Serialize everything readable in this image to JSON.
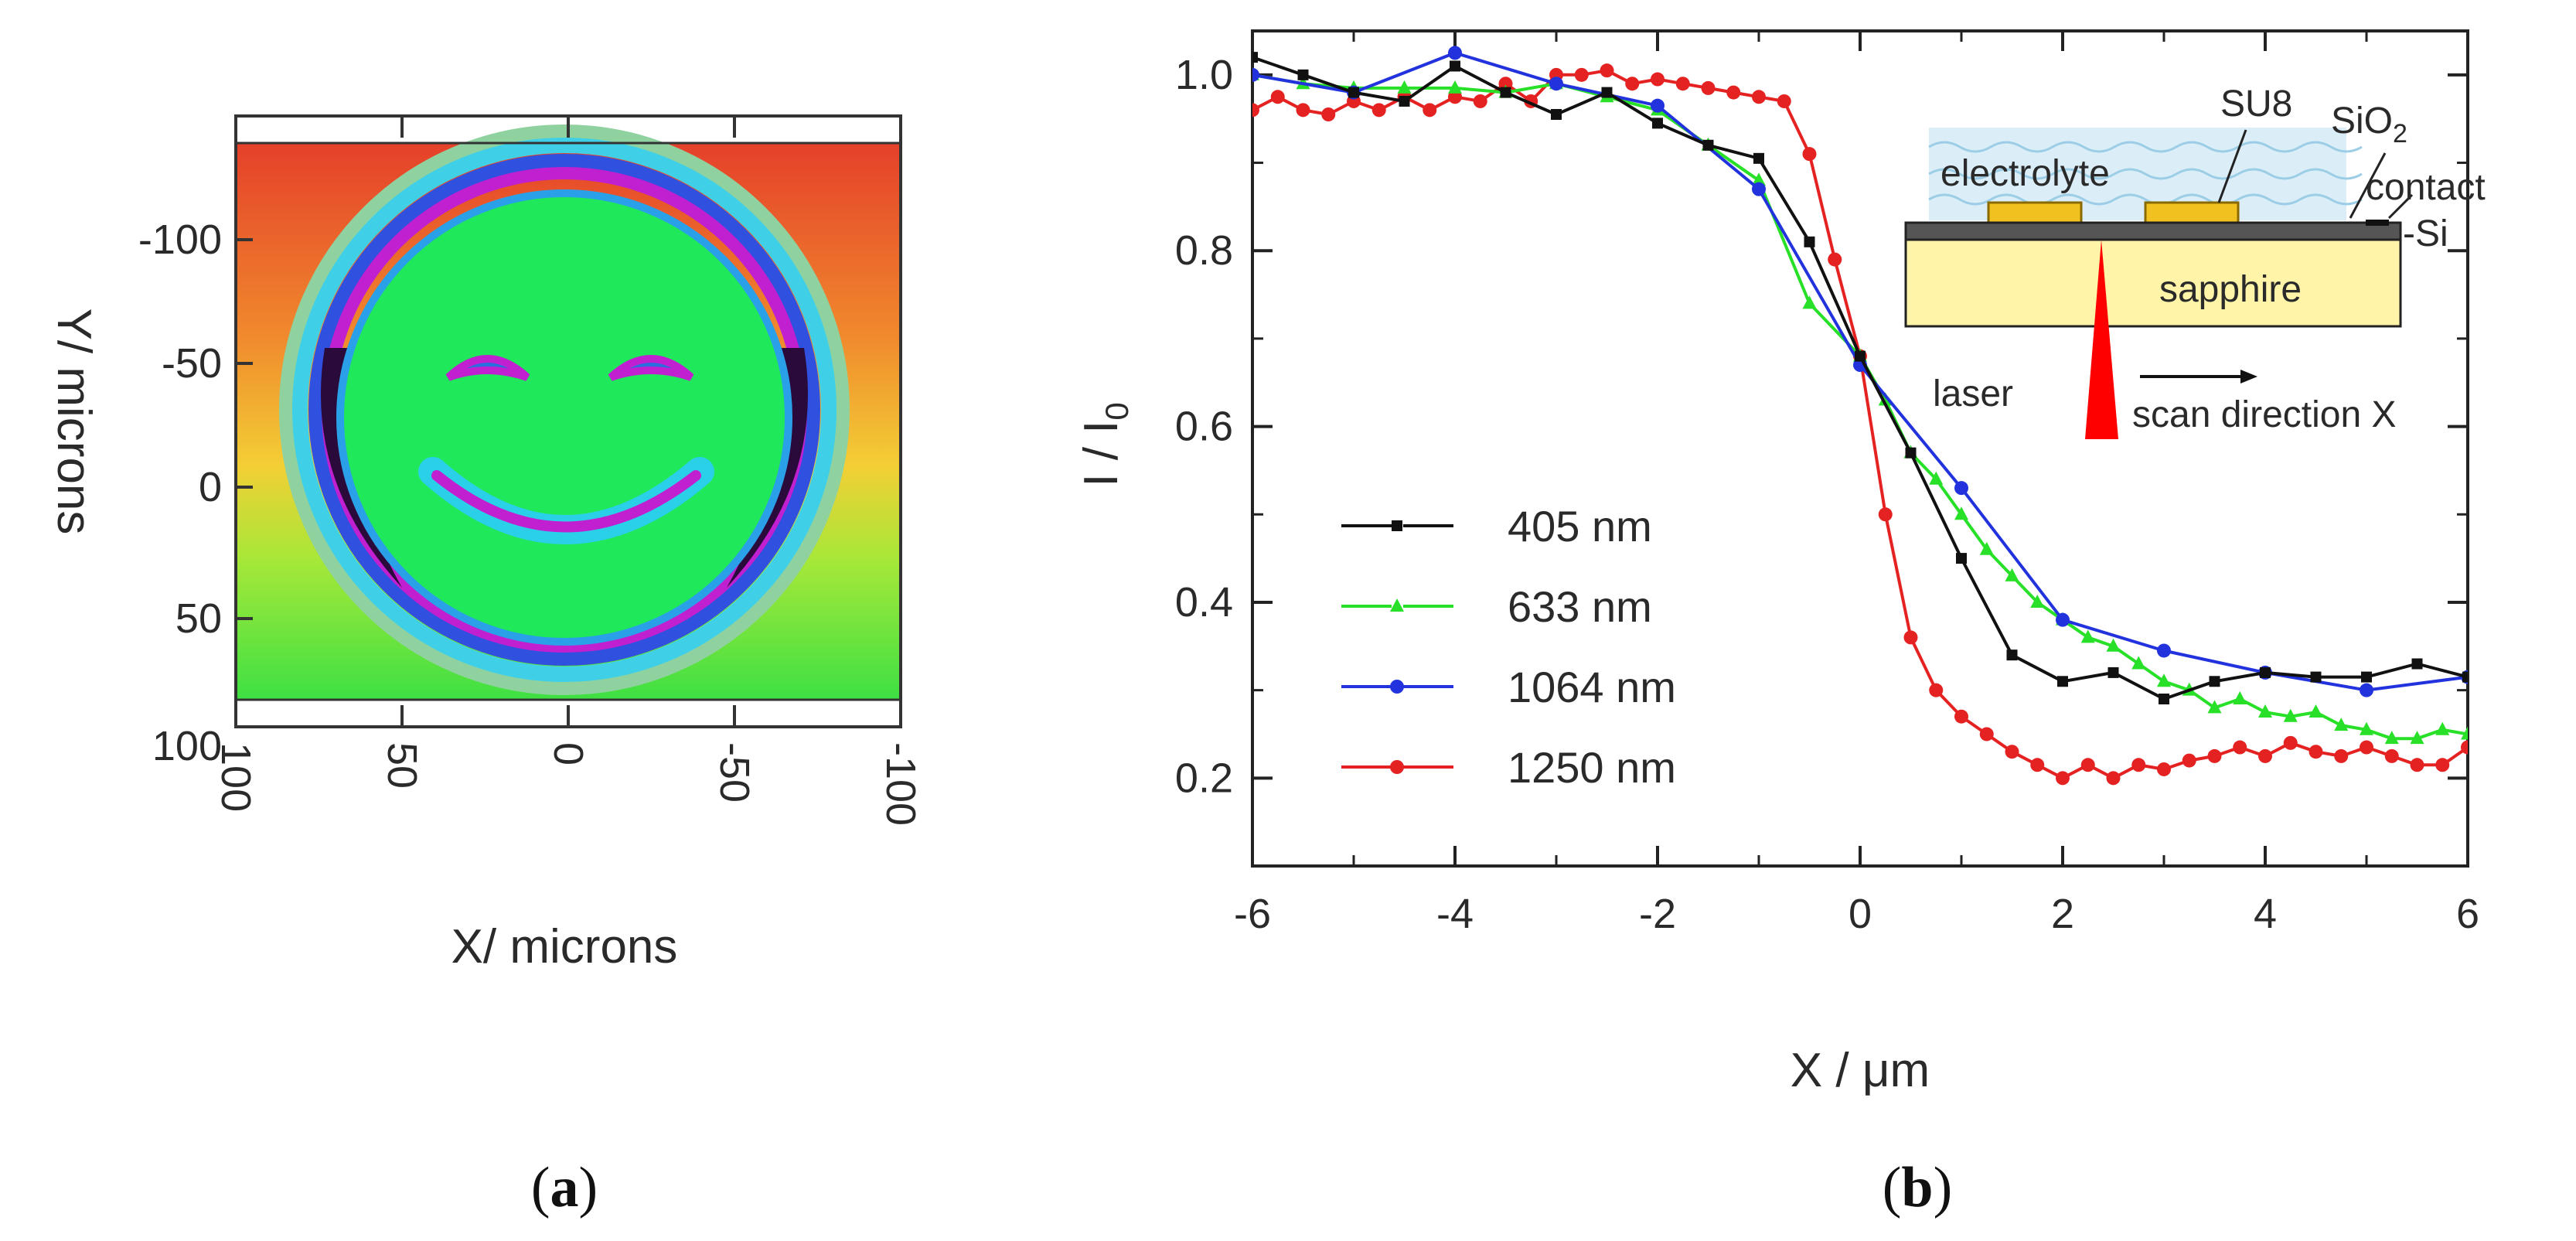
{
  "panel_a": {
    "xlabel": "X/ microns",
    "ylabel": "Y/ microns",
    "xticks": [
      "100",
      "50",
      "0",
      "-50",
      "-100"
    ],
    "yticks": [
      "-100",
      "-50",
      "0",
      "50",
      "100"
    ],
    "caption_label": "a",
    "caption_open": "(",
    "caption_close": ")",
    "colors": {
      "background_top": "#e8402a",
      "background_mid": "#f0b030",
      "background_bottom": "#38e040",
      "face_fill": "#1fe85a",
      "ring_outer": "#7ad0f0",
      "ring_blue": "#3050e0",
      "ring_magenta": "#c020d0"
    }
  },
  "chart_data": {
    "type": "line",
    "xlabel": "X / μm",
    "ylabel": "I / I",
    "ylabel_sub": "0",
    "xlim": [
      -6,
      6
    ],
    "ylim": [
      0.1,
      1.05
    ],
    "xticks": [
      -6,
      -4,
      -2,
      0,
      2,
      4,
      6
    ],
    "yticks": [
      0.2,
      0.4,
      0.6,
      0.8,
      1.0
    ],
    "xtick_labels": [
      "-6",
      "-4",
      "-2",
      "0",
      "2",
      "4",
      "6"
    ],
    "ytick_labels": [
      "0.2",
      "0.4",
      "0.6",
      "0.8",
      "1.0"
    ],
    "legend_position": "center-left",
    "series": [
      {
        "name": "405 nm",
        "color": "#111111",
        "marker": "square",
        "x": [
          -6,
          -5.5,
          -5,
          -4.5,
          -4,
          -3.5,
          -3,
          -2.5,
          -2,
          -1.5,
          -1,
          -0.5,
          0,
          0.5,
          1,
          1.5,
          2,
          2.5,
          3,
          3.5,
          4,
          4.5,
          5,
          5.5,
          6
        ],
        "values": [
          1.02,
          1.0,
          0.98,
          0.97,
          1.01,
          0.98,
          0.955,
          0.98,
          0.945,
          0.92,
          0.905,
          0.81,
          0.68,
          0.57,
          0.45,
          0.34,
          0.31,
          0.32,
          0.29,
          0.31,
          0.32,
          0.315,
          0.315,
          0.33,
          0.315
        ]
      },
      {
        "name": "633 nm",
        "color": "#27e027",
        "marker": "triangle",
        "x": [
          -6,
          -5.5,
          -5,
          -4.5,
          -4,
          -3.5,
          -3,
          -2.5,
          -2,
          -1.5,
          -1,
          -0.5,
          0,
          0.25,
          0.5,
          0.75,
          1,
          1.25,
          1.5,
          1.75,
          2,
          2.25,
          2.5,
          2.75,
          3,
          3.25,
          3.5,
          3.75,
          4,
          4.25,
          4.5,
          4.75,
          5,
          5.25,
          5.5,
          5.75,
          6
        ],
        "values": [
          1.0,
          0.99,
          0.985,
          0.985,
          0.985,
          0.98,
          0.99,
          0.975,
          0.96,
          0.92,
          0.88,
          0.74,
          0.68,
          0.63,
          0.57,
          0.54,
          0.5,
          0.46,
          0.43,
          0.4,
          0.38,
          0.36,
          0.35,
          0.33,
          0.31,
          0.3,
          0.28,
          0.29,
          0.275,
          0.27,
          0.275,
          0.26,
          0.255,
          0.245,
          0.245,
          0.255,
          0.25
        ]
      },
      {
        "name": "1064 nm",
        "color": "#2233dd",
        "marker": "circle",
        "x": [
          -6,
          -5,
          -4,
          -3,
          -2,
          -1,
          0,
          1,
          2,
          3,
          4,
          5,
          6
        ],
        "values": [
          1.0,
          0.98,
          1.025,
          0.99,
          0.965,
          0.87,
          0.67,
          0.53,
          0.38,
          0.345,
          0.32,
          0.3,
          0.315
        ]
      },
      {
        "name": "1250 nm",
        "color": "#e52222",
        "marker": "circle",
        "x": [
          -6,
          -5.75,
          -5.5,
          -5.25,
          -5,
          -4.75,
          -4.5,
          -4.25,
          -4,
          -3.75,
          -3.5,
          -3.25,
          -3,
          -2.75,
          -2.5,
          -2.25,
          -2,
          -1.75,
          -1.5,
          -1.25,
          -1,
          -0.75,
          -0.5,
          -0.25,
          0,
          0.25,
          0.5,
          0.75,
          1,
          1.25,
          1.5,
          1.75,
          2,
          2.25,
          2.5,
          2.75,
          3,
          3.25,
          3.5,
          3.75,
          4,
          4.25,
          4.5,
          4.75,
          5,
          5.25,
          5.5,
          5.75,
          6
        ],
        "values": [
          0.96,
          0.975,
          0.96,
          0.955,
          0.97,
          0.96,
          0.975,
          0.96,
          0.975,
          0.97,
          0.99,
          0.97,
          1.0,
          1.0,
          1.005,
          0.99,
          0.995,
          0.99,
          0.985,
          0.98,
          0.975,
          0.97,
          0.91,
          0.79,
          0.68,
          0.5,
          0.36,
          0.3,
          0.27,
          0.25,
          0.23,
          0.215,
          0.2,
          0.215,
          0.2,
          0.215,
          0.21,
          0.22,
          0.225,
          0.235,
          0.225,
          0.24,
          0.23,
          0.225,
          0.235,
          0.225,
          0.215,
          0.215,
          0.235
        ]
      }
    ],
    "inset": {
      "labels": {
        "electrolyte": "electrolyte",
        "su8": "SU8",
        "sio2": "SiO",
        "sio2_sub": "2",
        "contact": "contact",
        "si": "-Si",
        "sapphire": "sapphire",
        "laser": "laser",
        "scan": "scan direction X"
      },
      "colors": {
        "sapphire": "#fff4a8",
        "su8": "#f1c21f",
        "electrolyte": "#d7ecf6",
        "laser": "#ff0000",
        "si": "#555555"
      }
    },
    "caption_label": "b",
    "caption_open": "(",
    "caption_close": ")"
  }
}
